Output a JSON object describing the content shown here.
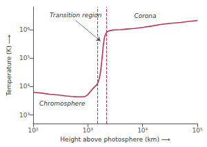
{
  "chart_data": {
    "type": "line",
    "xlabel": "Height above photosphere (km) ⟶",
    "ylabel": "Temperature (K) ⟶",
    "x": [
      100,
      120,
      150,
      200,
      300,
      400,
      500,
      600,
      700,
      800,
      900,
      1000,
      1100,
      1200,
      1350,
      1480,
      1550,
      1600,
      1650,
      1700,
      1750,
      1800,
      1850,
      1900,
      2000,
      2100,
      2200,
      2400,
      2700,
      3000,
      4000,
      5000,
      7000,
      10000,
      15000,
      20000,
      30000,
      50000,
      70000,
      100000
    ],
    "values": [
      6300,
      6100,
      5800,
      5400,
      5000,
      4700,
      4500,
      4400,
      4350,
      4350,
      4500,
      5200,
      6500,
      8000,
      10000,
      12000,
      15000,
      18000,
      23000,
      32000,
      50000,
      80000,
      140000,
      250000,
      500000,
      700000,
      800000,
      900000,
      950000,
      980000,
      1000000,
      1050000,
      1100000,
      1200000,
      1350000,
      1500000,
      1650000,
      1800000,
      1950000,
      2100000
    ],
    "color": "#c0304a",
    "log": true,
    "xlim": [
      100,
      100000
    ],
    "ylim": [
      501.1872336272722,
      6309573.444801933
    ],
    "xticks": [
      {
        "value": 100,
        "label": "10²"
      },
      {
        "value": 1000,
        "label": "10³"
      },
      {
        "value": 10000,
        "label": "10⁴"
      },
      {
        "value": 100000,
        "label": "10⁵"
      }
    ],
    "yticks": [
      {
        "value": 1000,
        "label": "10³"
      },
      {
        "value": 10000,
        "label": "10⁴"
      },
      {
        "value": 100000,
        "label": "10⁵"
      },
      {
        "value": 1000000,
        "label": "10⁶"
      }
    ],
    "vlines": [
      1500,
      2200
    ],
    "annotations": [
      "Chromosphere",
      "Corona",
      "Transition region"
    ],
    "grid": false
  }
}
